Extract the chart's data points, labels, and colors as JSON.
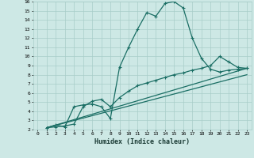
{
  "xlabel": "Humidex (Indice chaleur)",
  "xlim": [
    -0.5,
    23.5
  ],
  "ylim": [
    2,
    16
  ],
  "xticks": [
    0,
    1,
    2,
    3,
    4,
    5,
    6,
    7,
    8,
    9,
    10,
    11,
    12,
    13,
    14,
    15,
    16,
    17,
    18,
    19,
    20,
    21,
    22,
    23
  ],
  "yticks": [
    2,
    3,
    4,
    5,
    6,
    7,
    8,
    9,
    10,
    11,
    12,
    13,
    14,
    15,
    16
  ],
  "background_color": "#cde8e5",
  "grid_color": "#a8cdc9",
  "line_color": "#1a6e64",
  "line1_x": [
    1,
    2,
    3,
    4,
    5,
    6,
    7,
    8,
    9,
    10,
    11,
    12,
    13,
    14,
    15,
    16,
    17,
    18,
    19,
    20,
    21,
    22,
    23
  ],
  "line1_y": [
    2.2,
    2.5,
    2.3,
    4.5,
    4.7,
    4.8,
    4.5,
    3.2,
    8.8,
    11.0,
    13.0,
    14.8,
    14.4,
    15.8,
    16.0,
    15.3,
    12.0,
    9.8,
    8.6,
    8.3,
    8.5,
    8.6,
    8.7
  ],
  "line2_x": [
    1,
    2,
    3,
    4,
    5,
    6,
    7,
    8,
    9,
    10,
    11,
    12,
    13,
    14,
    15,
    16,
    17,
    18,
    19,
    20,
    21,
    22,
    23
  ],
  "line2_y": [
    2.2,
    2.3,
    2.4,
    2.6,
    4.5,
    5.1,
    5.3,
    4.5,
    5.5,
    6.2,
    6.8,
    7.1,
    7.4,
    7.7,
    8.0,
    8.2,
    8.5,
    8.7,
    9.0,
    10.0,
    9.4,
    8.8,
    8.7
  ],
  "line3_x": [
    1,
    23
  ],
  "line3_y": [
    2.2,
    8.7
  ],
  "line4_x": [
    1,
    23
  ],
  "line4_y": [
    2.2,
    8.0
  ],
  "marker_size": 3.5,
  "linewidth": 0.9
}
